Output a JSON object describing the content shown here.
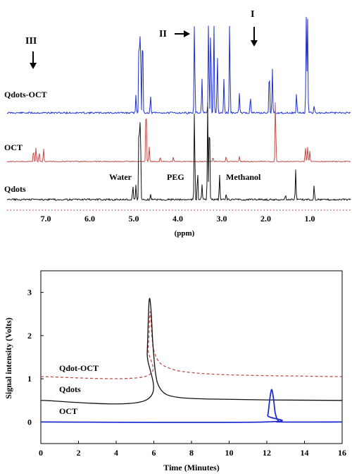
{
  "colors": {
    "blue": "#1f2fd0",
    "red": "#c0504d",
    "black": "#111111",
    "axis_dotted": "#d04a4a"
  },
  "chart_data": [
    {
      "type": "line",
      "panel": "nmr",
      "xlabel": "(ppm)",
      "xlim": [
        7.7,
        -0.2
      ],
      "x_reversed": true,
      "ticks": [
        "7.0",
        "6.0",
        "5.0",
        "4.0",
        "3.0",
        "2.0",
        "1.0"
      ],
      "tick_values": [
        7.0,
        6.0,
        5.0,
        4.0,
        3.0,
        2.0,
        1.0
      ],
      "annotations": {
        "peak_markers": [
          {
            "label": "III",
            "ppm": 7.25,
            "arrow": "down"
          },
          {
            "label": "II",
            "ppm": 3.6,
            "arrow": "right"
          },
          {
            "label": "I",
            "ppm": 2.35,
            "arrow": "down"
          }
        ],
        "peak_names": [
          {
            "label": "Water",
            "ppm": 4.85
          },
          {
            "label": "PEG",
            "ppm": 3.65
          },
          {
            "label": "Methanol",
            "ppm": 3.3
          }
        ]
      },
      "series": [
        {
          "name": "Qdots-OCT",
          "color": "#1f2fd0",
          "peaks": [
            [
              4.95,
              0.35
            ],
            [
              4.88,
              1.9
            ],
            [
              4.85,
              1.9
            ],
            [
              4.8,
              1.9
            ],
            [
              4.62,
              0.35
            ],
            [
              3.62,
              1.9
            ],
            [
              3.45,
              0.7
            ],
            [
              3.3,
              1.9
            ],
            [
              3.25,
              1.9
            ],
            [
              3.18,
              1.9
            ],
            [
              3.1,
              1.2
            ],
            [
              2.95,
              0.7
            ],
            [
              2.82,
              1.9
            ],
            [
              2.6,
              0.4
            ],
            [
              2.35,
              0.35
            ],
            [
              1.92,
              0.95
            ],
            [
              1.85,
              0.9
            ],
            [
              1.3,
              0.4
            ],
            [
              1.08,
              1.9
            ],
            [
              1.05,
              1.9
            ],
            [
              0.9,
              0.15
            ]
          ]
        },
        {
          "name": "OCT",
          "color": "#c0504d",
          "peaks": [
            [
              7.28,
              0.25
            ],
            [
              7.22,
              0.3
            ],
            [
              7.15,
              0.2
            ],
            [
              7.05,
              0.25
            ],
            [
              4.72,
              1.3
            ],
            [
              4.65,
              0.3
            ],
            [
              4.4,
              0.1
            ],
            [
              4.1,
              0.1
            ],
            [
              3.2,
              0.1
            ],
            [
              2.9,
              0.1
            ],
            [
              2.6,
              0.1
            ],
            [
              1.78,
              1.3
            ],
            [
              1.1,
              0.3
            ],
            [
              1.05,
              0.3
            ],
            [
              1.0,
              0.2
            ]
          ]
        },
        {
          "name": "Qdots",
          "color": "#111111",
          "peaks": [
            [
              5.02,
              0.3
            ],
            [
              4.95,
              0.3
            ],
            [
              4.88,
              1.9
            ],
            [
              4.85,
              1.9
            ],
            [
              4.62,
              0.1
            ],
            [
              3.62,
              1.9
            ],
            [
              3.55,
              0.6
            ],
            [
              3.45,
              0.3
            ],
            [
              3.32,
              1.9
            ],
            [
              3.28,
              1.9
            ],
            [
              3.05,
              0.5
            ],
            [
              2.9,
              0.1
            ],
            [
              1.55,
              0.1
            ],
            [
              1.32,
              0.6
            ],
            [
              0.9,
              0.3
            ]
          ]
        }
      ]
    },
    {
      "type": "line",
      "panel": "chromatogram",
      "xlabel": "Time (Minutes)",
      "ylabel": "Signal intensity (Volts)",
      "xlim": [
        0,
        16
      ],
      "ylim": [
        -0.5,
        3.5
      ],
      "xticks": [
        0,
        2,
        4,
        6,
        8,
        10,
        12,
        14,
        16
      ],
      "yticks": [
        0,
        1,
        2,
        3
      ],
      "series": [
        {
          "name": "Qdot-OCT",
          "color": "#c0504d",
          "dashed": true,
          "baseline": 1.05,
          "points": [
            [
              0,
              1.05
            ],
            [
              5.5,
              1.05
            ],
            [
              5.7,
              1.7
            ],
            [
              5.8,
              2.55
            ],
            [
              5.9,
              2.0
            ],
            [
              6.0,
              1.65
            ],
            [
              6.3,
              1.38
            ],
            [
              6.8,
              1.25
            ],
            [
              7.5,
              1.17
            ],
            [
              9,
              1.11
            ],
            [
              11,
              1.08
            ],
            [
              14,
              1.06
            ],
            [
              16,
              1.05
            ]
          ]
        },
        {
          "name": "Qdots",
          "color": "#111111",
          "dashed": false,
          "baseline": 0.5,
          "points": [
            [
              0,
              0.5
            ],
            [
              5.55,
              0.5
            ],
            [
              5.65,
              1.6
            ],
            [
              5.75,
              2.8
            ],
            [
              5.85,
              2.6
            ],
            [
              5.95,
              1.8
            ],
            [
              6.1,
              1.1
            ],
            [
              6.3,
              0.8
            ],
            [
              6.7,
              0.63
            ],
            [
              7.5,
              0.56
            ],
            [
              9,
              0.53
            ],
            [
              12,
              0.51
            ],
            [
              16,
              0.5
            ]
          ]
        },
        {
          "name": "OCT",
          "color": "#1f2fd0",
          "dashed": false,
          "baseline": 0.0,
          "points": [
            [
              0,
              0
            ],
            [
              11.9,
              0
            ],
            [
              12.05,
              0.15
            ],
            [
              12.15,
              0.5
            ],
            [
              12.25,
              0.75
            ],
            [
              12.35,
              0.55
            ],
            [
              12.45,
              0.2
            ],
            [
              12.6,
              0.03
            ],
            [
              12.8,
              0
            ],
            [
              16,
              0
            ]
          ]
        }
      ]
    }
  ]
}
